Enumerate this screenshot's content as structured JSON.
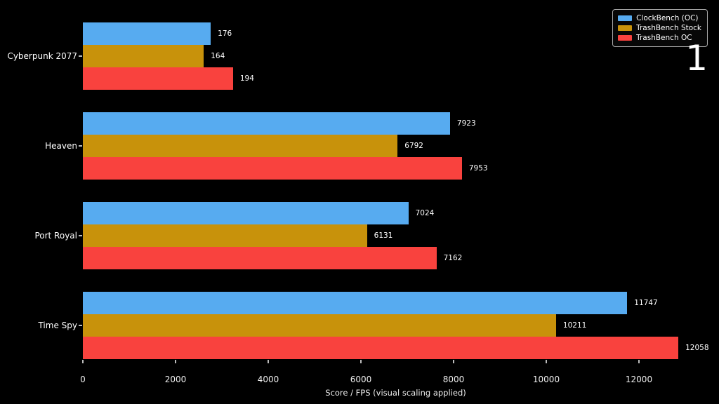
{
  "slide_number": "1",
  "chart_data": {
    "type": "bar",
    "orientation": "horizontal",
    "title": "",
    "xlabel": "Score / FPS (visual scaling applied)",
    "xlim": [
      0,
      13500
    ],
    "xticks": [
      0,
      2000,
      4000,
      6000,
      8000,
      10000,
      12000
    ],
    "grid": false,
    "legend_position": "top-right",
    "background_color": "#000000",
    "text_color": "#ffffff",
    "categories": [
      "Cyberpunk 2077",
      "Heaven",
      "Port Royal",
      "Time Spy"
    ],
    "series": [
      {
        "name": "ClockBench (OC)",
        "color": "#57ABF0",
        "values": [
          176,
          7923,
          7024,
          11747
        ],
        "visual_lengths": [
          2760,
          7923,
          7024,
          11747
        ]
      },
      {
        "name": "TrashBench Stock",
        "color": "#C8920B",
        "values": [
          164,
          6792,
          6131,
          10211
        ],
        "visual_lengths": [
          2610,
          6792,
          6131,
          10211
        ]
      },
      {
        "name": "TrashBench OC",
        "color": "#F9423E",
        "values": [
          194,
          7953,
          7162,
          12058
        ],
        "visual_lengths": [
          3240,
          8180,
          7630,
          12850
        ]
      }
    ]
  }
}
